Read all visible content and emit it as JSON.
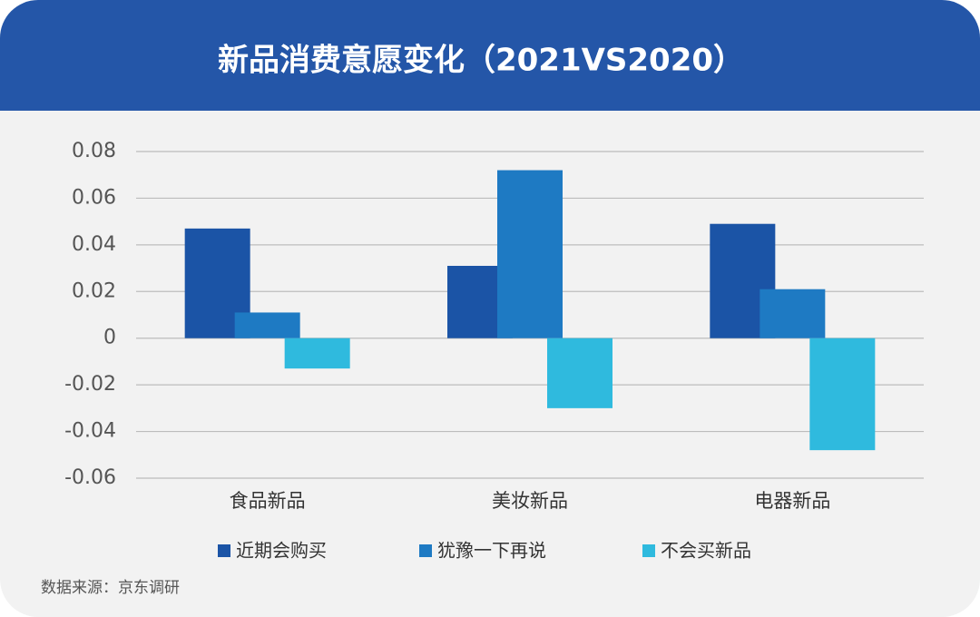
{
  "chart_data": {
    "type": "bar",
    "title": "新品消费意愿变化（2021VS2020）",
    "categories": [
      "食品新品",
      "美妆新品",
      "电器新品"
    ],
    "series": [
      {
        "name": "近期会购买",
        "color": "#1b54a6",
        "values": [
          0.047,
          0.031,
          0.049
        ]
      },
      {
        "name": "犹豫一下再说",
        "color": "#1e7ac3",
        "values": [
          0.011,
          0.072,
          0.021
        ]
      },
      {
        "name": "不会买新品",
        "color": "#2fbade",
        "values": [
          -0.013,
          -0.03,
          -0.048
        ]
      }
    ],
    "ylim": [
      -0.06,
      0.08
    ],
    "yticks": [
      0.08,
      0.06,
      0.04,
      0.02,
      0,
      -0.02,
      -0.04,
      -0.06
    ],
    "grid": true,
    "legend": "bottom",
    "source": "数据来源：京东调研"
  }
}
